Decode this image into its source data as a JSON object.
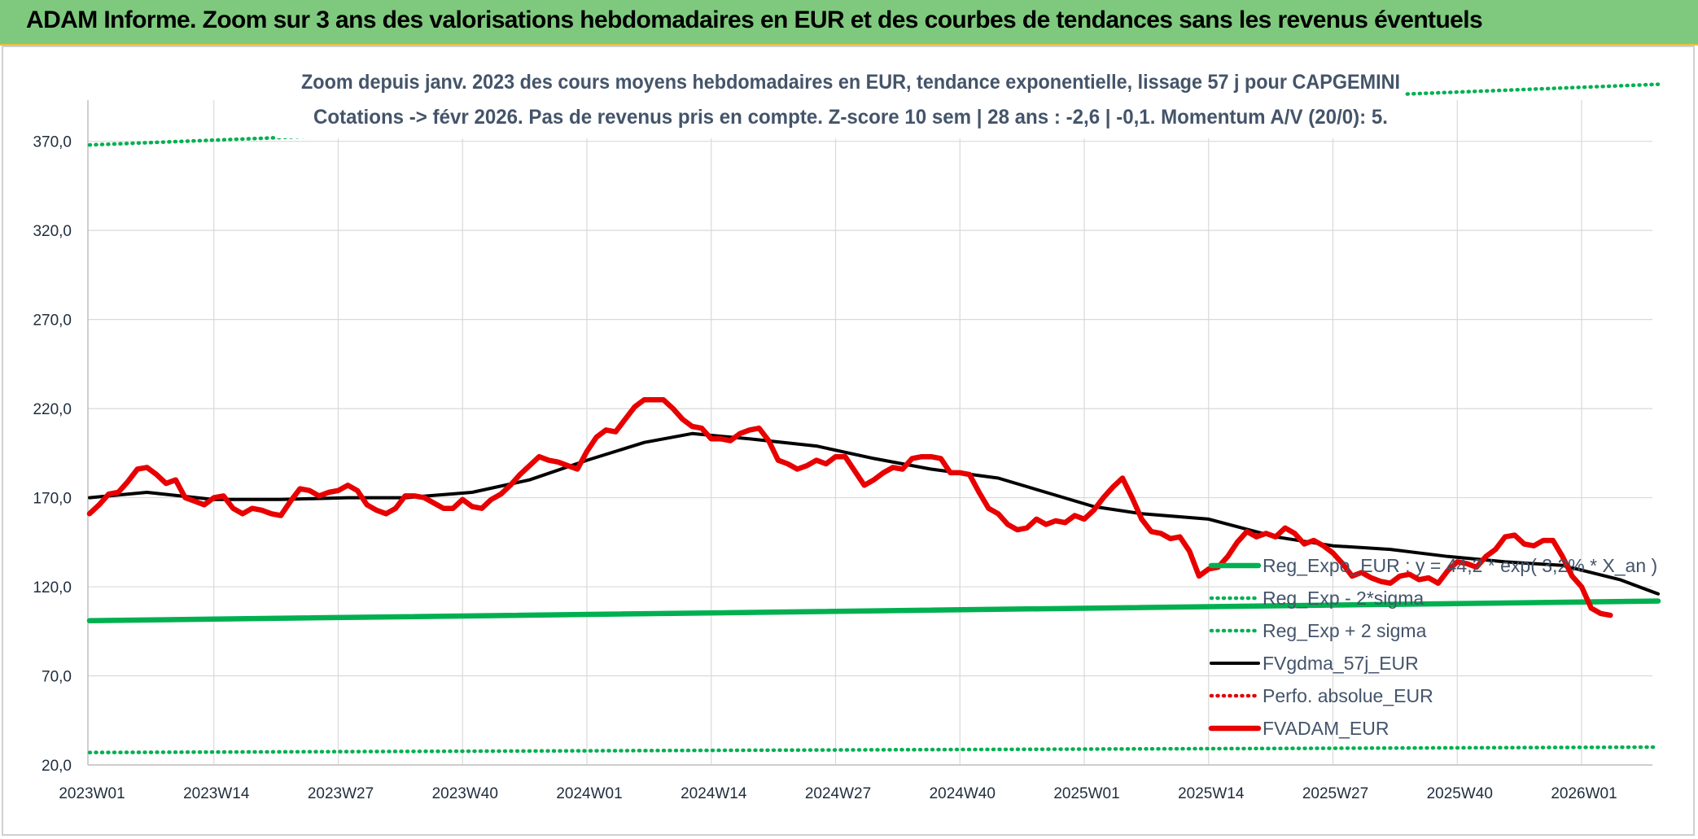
{
  "header": {
    "title": "ADAM Informe. Zoom sur 3 ans des valorisations hebdomadaires en EUR et des courbes de tendances sans les revenus éventuels"
  },
  "chart_data": {
    "type": "line",
    "title_line1": "Zoom depuis janv. 2023 des cours moyens hebdomadaires en EUR, tendance exponentielle, lissage 57 j pour CAPGEMINI",
    "title_line2": "Cotations -> févr 2026. Pas de revenus pris en compte. Z-score 10 sem | 28 ans : -2,6 | -0,1. Momentum A/V (20/0): 5.",
    "ylim": [
      20,
      400
    ],
    "yticks": [
      "20,0",
      "70,0",
      "120,0",
      "170,0",
      "220,0",
      "270,0",
      "320,0",
      "370,0"
    ],
    "ytick_values": [
      20,
      70,
      120,
      170,
      220,
      270,
      320,
      370
    ],
    "xticks": [
      "2023W01",
      "2023W14",
      "2023W27",
      "2023W40",
      "2024W01",
      "2024W14",
      "2024W27",
      "2024W40",
      "2025W01",
      "2025W14",
      "2025W27",
      "2025W40",
      "2026W01"
    ],
    "x_range_weeks": [
      0,
      164
    ],
    "series": [
      {
        "name": "Reg_Expo_EUR : y = 44,2 * exp( 3,2% * X_an )",
        "color": "#00b050",
        "style": "solid-thick",
        "points": [
          [
            0,
            101
          ],
          [
            164,
            112
          ]
        ]
      },
      {
        "name": "Reg_Exp - 2*sigma",
        "color": "#00b050",
        "style": "dotted",
        "points": [
          [
            0,
            27
          ],
          [
            164,
            30
          ]
        ]
      },
      {
        "name": "Reg_Exp + 2 sigma",
        "color": "#00b050",
        "style": "dotted",
        "points": [
          [
            0,
            368
          ],
          [
            164,
            402
          ]
        ]
      },
      {
        "name": "FVgdma_57j_EUR",
        "color": "#000000",
        "style": "solid",
        "points": [
          [
            0,
            170
          ],
          [
            6,
            173
          ],
          [
            13,
            169
          ],
          [
            20,
            169
          ],
          [
            27,
            170
          ],
          [
            33,
            170
          ],
          [
            40,
            173
          ],
          [
            46,
            180
          ],
          [
            52,
            191
          ],
          [
            58,
            201
          ],
          [
            63,
            206
          ],
          [
            69,
            203
          ],
          [
            76,
            199
          ],
          [
            82,
            192
          ],
          [
            88,
            186
          ],
          [
            95,
            181
          ],
          [
            100,
            173
          ],
          [
            105,
            165
          ],
          [
            110,
            161
          ],
          [
            117,
            158
          ],
          [
            124,
            148
          ],
          [
            130,
            143
          ],
          [
            136,
            141
          ],
          [
            142,
            137
          ],
          [
            148,
            134
          ],
          [
            154,
            132
          ],
          [
            160,
            124
          ],
          [
            164,
            116
          ]
        ]
      },
      {
        "name": "Perfo. absolue_EUR",
        "color": "#e00000",
        "style": "dotted",
        "points": []
      },
      {
        "name": "FVADAM_EUR",
        "color": "#e80000",
        "style": "solid-thick",
        "points": [
          [
            0,
            161
          ],
          [
            1,
            166
          ],
          [
            2,
            172
          ],
          [
            3,
            173
          ],
          [
            4,
            179
          ],
          [
            5,
            186
          ],
          [
            6,
            187
          ],
          [
            7,
            183
          ],
          [
            8,
            178
          ],
          [
            9,
            180
          ],
          [
            10,
            170
          ],
          [
            11,
            168
          ],
          [
            12,
            166
          ],
          [
            13,
            170
          ],
          [
            14,
            171
          ],
          [
            15,
            164
          ],
          [
            16,
            161
          ],
          [
            17,
            164
          ],
          [
            18,
            163
          ],
          [
            19,
            161
          ],
          [
            20,
            160
          ],
          [
            21,
            168
          ],
          [
            22,
            175
          ],
          [
            23,
            174
          ],
          [
            24,
            171
          ],
          [
            25,
            173
          ],
          [
            26,
            174
          ],
          [
            27,
            177
          ],
          [
            28,
            174
          ],
          [
            29,
            166
          ],
          [
            30,
            163
          ],
          [
            31,
            161
          ],
          [
            32,
            164
          ],
          [
            33,
            171
          ],
          [
            34,
            171
          ],
          [
            35,
            170
          ],
          [
            36,
            167
          ],
          [
            37,
            164
          ],
          [
            38,
            164
          ],
          [
            39,
            169
          ],
          [
            40,
            165
          ],
          [
            41,
            164
          ],
          [
            42,
            169
          ],
          [
            43,
            172
          ],
          [
            44,
            177
          ],
          [
            45,
            183
          ],
          [
            46,
            188
          ],
          [
            47,
            193
          ],
          [
            48,
            191
          ],
          [
            49,
            190
          ],
          [
            50,
            188
          ],
          [
            51,
            186
          ],
          [
            52,
            196
          ],
          [
            53,
            204
          ],
          [
            54,
            208
          ],
          [
            55,
            207
          ],
          [
            56,
            214
          ],
          [
            57,
            221
          ],
          [
            58,
            225
          ],
          [
            59,
            225
          ],
          [
            60,
            225
          ],
          [
            61,
            220
          ],
          [
            62,
            214
          ],
          [
            63,
            210
          ],
          [
            64,
            209
          ],
          [
            65,
            203
          ],
          [
            66,
            203
          ],
          [
            67,
            202
          ],
          [
            68,
            206
          ],
          [
            69,
            208
          ],
          [
            70,
            209
          ],
          [
            71,
            202
          ],
          [
            72,
            191
          ],
          [
            73,
            189
          ],
          [
            74,
            186
          ],
          [
            75,
            188
          ],
          [
            76,
            191
          ],
          [
            77,
            189
          ],
          [
            78,
            193
          ],
          [
            79,
            193
          ],
          [
            80,
            185
          ],
          [
            81,
            177
          ],
          [
            82,
            180
          ],
          [
            83,
            184
          ],
          [
            84,
            187
          ],
          [
            85,
            186
          ],
          [
            86,
            192
          ],
          [
            87,
            193
          ],
          [
            88,
            193
          ],
          [
            89,
            192
          ],
          [
            90,
            184
          ],
          [
            91,
            184
          ],
          [
            92,
            183
          ],
          [
            93,
            173
          ],
          [
            94,
            164
          ],
          [
            95,
            161
          ],
          [
            96,
            155
          ],
          [
            97,
            152
          ],
          [
            98,
            153
          ],
          [
            99,
            158
          ],
          [
            100,
            155
          ],
          [
            101,
            157
          ],
          [
            102,
            156
          ],
          [
            103,
            160
          ],
          [
            104,
            158
          ],
          [
            105,
            163
          ],
          [
            106,
            170
          ],
          [
            107,
            176
          ],
          [
            108,
            181
          ],
          [
            109,
            170
          ],
          [
            110,
            158
          ],
          [
            111,
            151
          ],
          [
            112,
            150
          ],
          [
            113,
            147
          ],
          [
            114,
            148
          ],
          [
            115,
            140
          ],
          [
            116,
            126
          ],
          [
            117,
            130
          ],
          [
            118,
            131
          ],
          [
            119,
            137
          ],
          [
            120,
            145
          ],
          [
            121,
            151
          ],
          [
            122,
            148
          ],
          [
            123,
            150
          ],
          [
            124,
            148
          ],
          [
            125,
            153
          ],
          [
            126,
            150
          ],
          [
            127,
            144
          ],
          [
            128,
            146
          ],
          [
            129,
            143
          ],
          [
            130,
            139
          ],
          [
            131,
            133
          ],
          [
            132,
            126
          ],
          [
            133,
            128
          ],
          [
            134,
            125
          ],
          [
            135,
            123
          ],
          [
            136,
            122
          ],
          [
            137,
            126
          ],
          [
            138,
            127
          ],
          [
            139,
            124
          ],
          [
            140,
            125
          ],
          [
            141,
            122
          ],
          [
            142,
            129
          ],
          [
            143,
            134
          ],
          [
            144,
            133
          ],
          [
            145,
            131
          ],
          [
            146,
            137
          ],
          [
            147,
            141
          ],
          [
            148,
            148
          ],
          [
            149,
            149
          ],
          [
            150,
            144
          ],
          [
            151,
            143
          ],
          [
            152,
            146
          ],
          [
            153,
            146
          ],
          [
            154,
            137
          ],
          [
            155,
            126
          ],
          [
            156,
            120
          ],
          [
            157,
            108
          ],
          [
            158,
            105
          ],
          [
            159,
            104
          ]
        ]
      }
    ],
    "legend_position": "bottom-right"
  }
}
